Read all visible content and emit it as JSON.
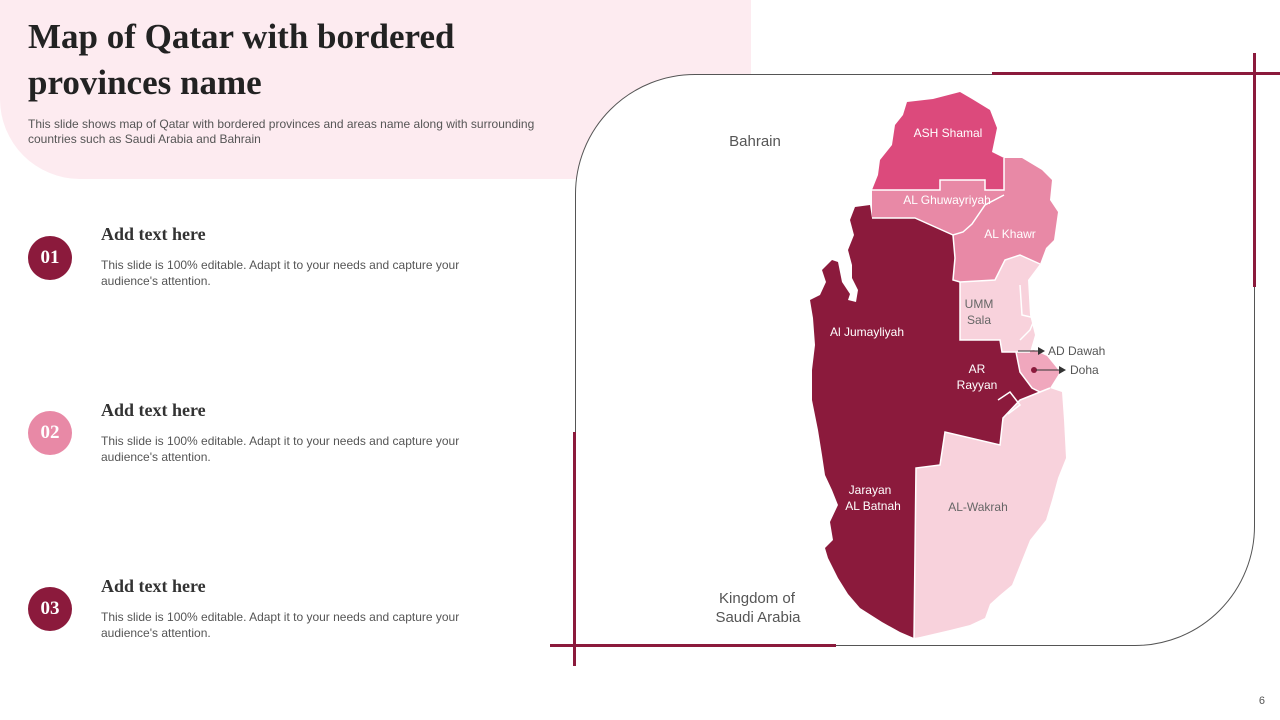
{
  "header": {
    "title": "Map of Qatar with bordered provinces name",
    "subtitle": "This slide shows map of Qatar with bordered provinces and areas name along with surrounding countries such as Saudi Arabia and Bahrain"
  },
  "items": [
    {
      "number": "01",
      "heading": "Add text here",
      "body": "This slide is 100% editable. Adapt it to your needs and capture your audience's attention."
    },
    {
      "number": "02",
      "heading": "Add text here",
      "body": "This slide is 100% editable. Adapt it to your needs and capture your audience's attention."
    },
    {
      "number": "03",
      "heading": "Add text here",
      "body": "This slide is 100% editable. Adapt it to your needs and capture your audience's attention."
    }
  ],
  "map": {
    "countries": {
      "bahrain": "Bahrain",
      "saudi_line1": "Kingdom of",
      "saudi_line2": "Saudi Arabia"
    },
    "provinces": {
      "ash_shamal": "ASH Shamal",
      "al_ghuwayriyah": "AL Ghuwayriyah",
      "al_khawr": "AL Khawr",
      "umm_sala_line1": "UMM",
      "umm_sala_line2": "Sala",
      "al_jumayliyah": "Al Jumayliyah",
      "ar_rayyan_line1": "AR",
      "ar_rayyan_line2": "Rayyan",
      "jarayan_line1": "Jarayan",
      "jarayan_line2": "AL Batnah",
      "al_wakrah": "AL-Wakrah"
    },
    "callouts": {
      "ad_dawah": "AD Dawah",
      "doha": "Doha"
    },
    "colors": {
      "ash_shamal": "#dc4a7c",
      "al_ghuwayriyah": "#e889a6",
      "al_khawr": "#e889a6",
      "umm_sala": "#f8d2dc",
      "west": "#8b1a3c",
      "al_wakrah": "#f8d2dc",
      "doha": "#f0a7bd"
    }
  },
  "colors": {
    "accent_dark": "#8b1a3c",
    "accent_light": "#e889a6",
    "header_bg": "#fdebf0"
  },
  "page_number": "6"
}
